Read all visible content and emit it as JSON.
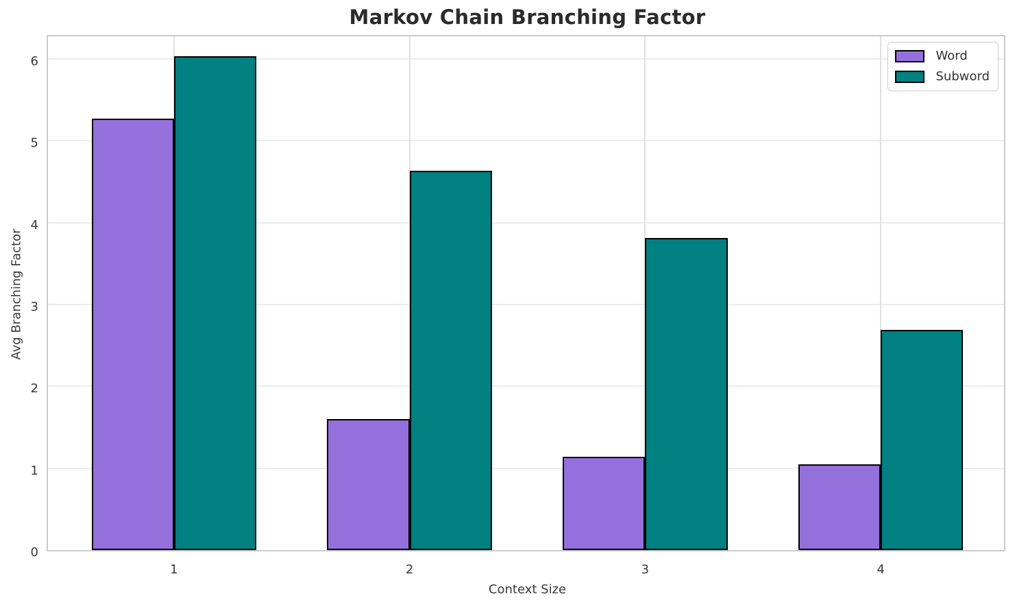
{
  "chart_data": {
    "type": "bar",
    "title": "Markov Chain Branching Factor",
    "xlabel": "Context Size",
    "ylabel": "Avg Branching Factor",
    "categories": [
      "1",
      "2",
      "3",
      "4"
    ],
    "series": [
      {
        "name": "Word",
        "color": "#9370DB",
        "values": [
          5.27,
          1.6,
          1.14,
          1.05
        ]
      },
      {
        "name": "Subword",
        "color": "#008080",
        "values": [
          6.03,
          4.63,
          3.81,
          2.69
        ]
      }
    ],
    "yticks": [
      0,
      1,
      2,
      3,
      4,
      5,
      6
    ],
    "ylim": [
      0,
      6.31
    ],
    "grid": true,
    "legend_position": "upper right",
    "colors": {
      "bar_edge": "#000000",
      "grid_horizontal": "#ececec",
      "grid_vertical": "#e0e0e0",
      "spine": "#cccccc",
      "title_text": "#2b2b2b",
      "tick_text": "#3a3a3a",
      "background": "#ffffff"
    }
  }
}
